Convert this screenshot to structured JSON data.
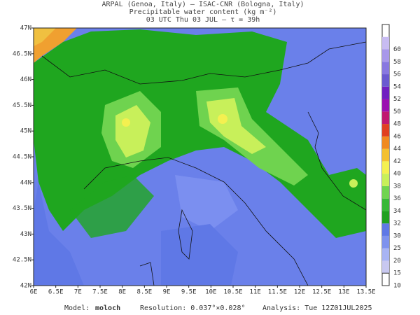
{
  "header": {
    "lines": [
      "ARPAL (Genoa, Italy)  —  ISAC-CNR (Bologna, Italy)",
      "Precipitable water content (kg m⁻²)",
      "03 UTC Thu 03 JUL  –  τ = 39h"
    ]
  },
  "map": {
    "lon_labels": [
      "6E",
      "6.5E",
      "7E",
      "7.5E",
      "8E",
      "8.5E",
      "9E",
      "9.5E",
      "10E",
      "10.5E",
      "11E",
      "11.5E",
      "12E",
      "12.5E",
      "13E",
      "13.5E"
    ],
    "lat_labels": [
      "47N",
      "46.5N",
      "46N",
      "45.5N",
      "45N",
      "44.5N",
      "44N",
      "43.5N",
      "43N",
      "42.5N",
      "42N"
    ]
  },
  "colorbar": {
    "levels": [
      10,
      15,
      20,
      25,
      30,
      32,
      34,
      36,
      38,
      40,
      42,
      44,
      46,
      48,
      50,
      52,
      54,
      56,
      58,
      60
    ],
    "colors": [
      "#e8e8f4",
      "#c8c8f0",
      "#a8b4f4",
      "#7e92ee",
      "#5f78e6",
      "#20a020",
      "#38b838",
      "#70d450",
      "#c8f05a",
      "#f4f050",
      "#f4c030",
      "#f08a20",
      "#e04020",
      "#c01870",
      "#9a10b0",
      "#7020c0",
      "#6a5ad0",
      "#8878e0",
      "#a898ea",
      "#c8bcf2"
    ]
  },
  "footer": {
    "model_label": "Model:",
    "model": "moloch",
    "resolution": "Resolution: 0.037°×0.028°",
    "analysis": "Analysis: Tue 12Z01JUL2025"
  }
}
